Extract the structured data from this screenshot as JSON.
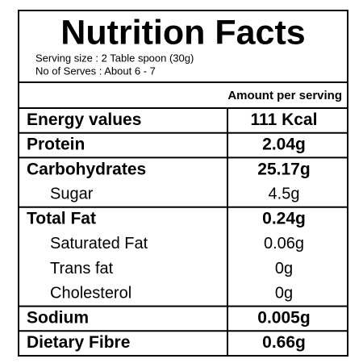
{
  "header": {
    "title": "Nutrition Facts",
    "serving_size": "Serving size : 2 Table spoon (30g)",
    "serves": "No of Serves : About 6 - 7"
  },
  "table": {
    "column_header": "Amount per serving",
    "rows": [
      {
        "label": "Energy values",
        "value": "111 Kcal",
        "bold": true,
        "indent": false
      },
      {
        "label": "Protein",
        "value": "2.04g",
        "bold": true,
        "indent": false
      },
      {
        "label": "Carbohydrates",
        "value": "25.17g",
        "bold": true,
        "indent": false
      },
      {
        "label": "Sugar",
        "value": "4.5g",
        "bold": false,
        "indent": true
      },
      {
        "label": "Total Fat",
        "value": "0.24g",
        "bold": true,
        "indent": false
      },
      {
        "label": "Saturated Fat",
        "value": "0.06g",
        "bold": false,
        "indent": true
      },
      {
        "label": "Trans fat",
        "value": "0g",
        "bold": false,
        "indent": true
      },
      {
        "label": "Cholesterol",
        "value": "0g",
        "bold": false,
        "indent": true
      },
      {
        "label": "Sodium",
        "value": "0.005g",
        "bold": true,
        "indent": false
      },
      {
        "label": "Dietary Fibre",
        "value": "0.66g",
        "bold": true,
        "indent": false
      }
    ]
  }
}
